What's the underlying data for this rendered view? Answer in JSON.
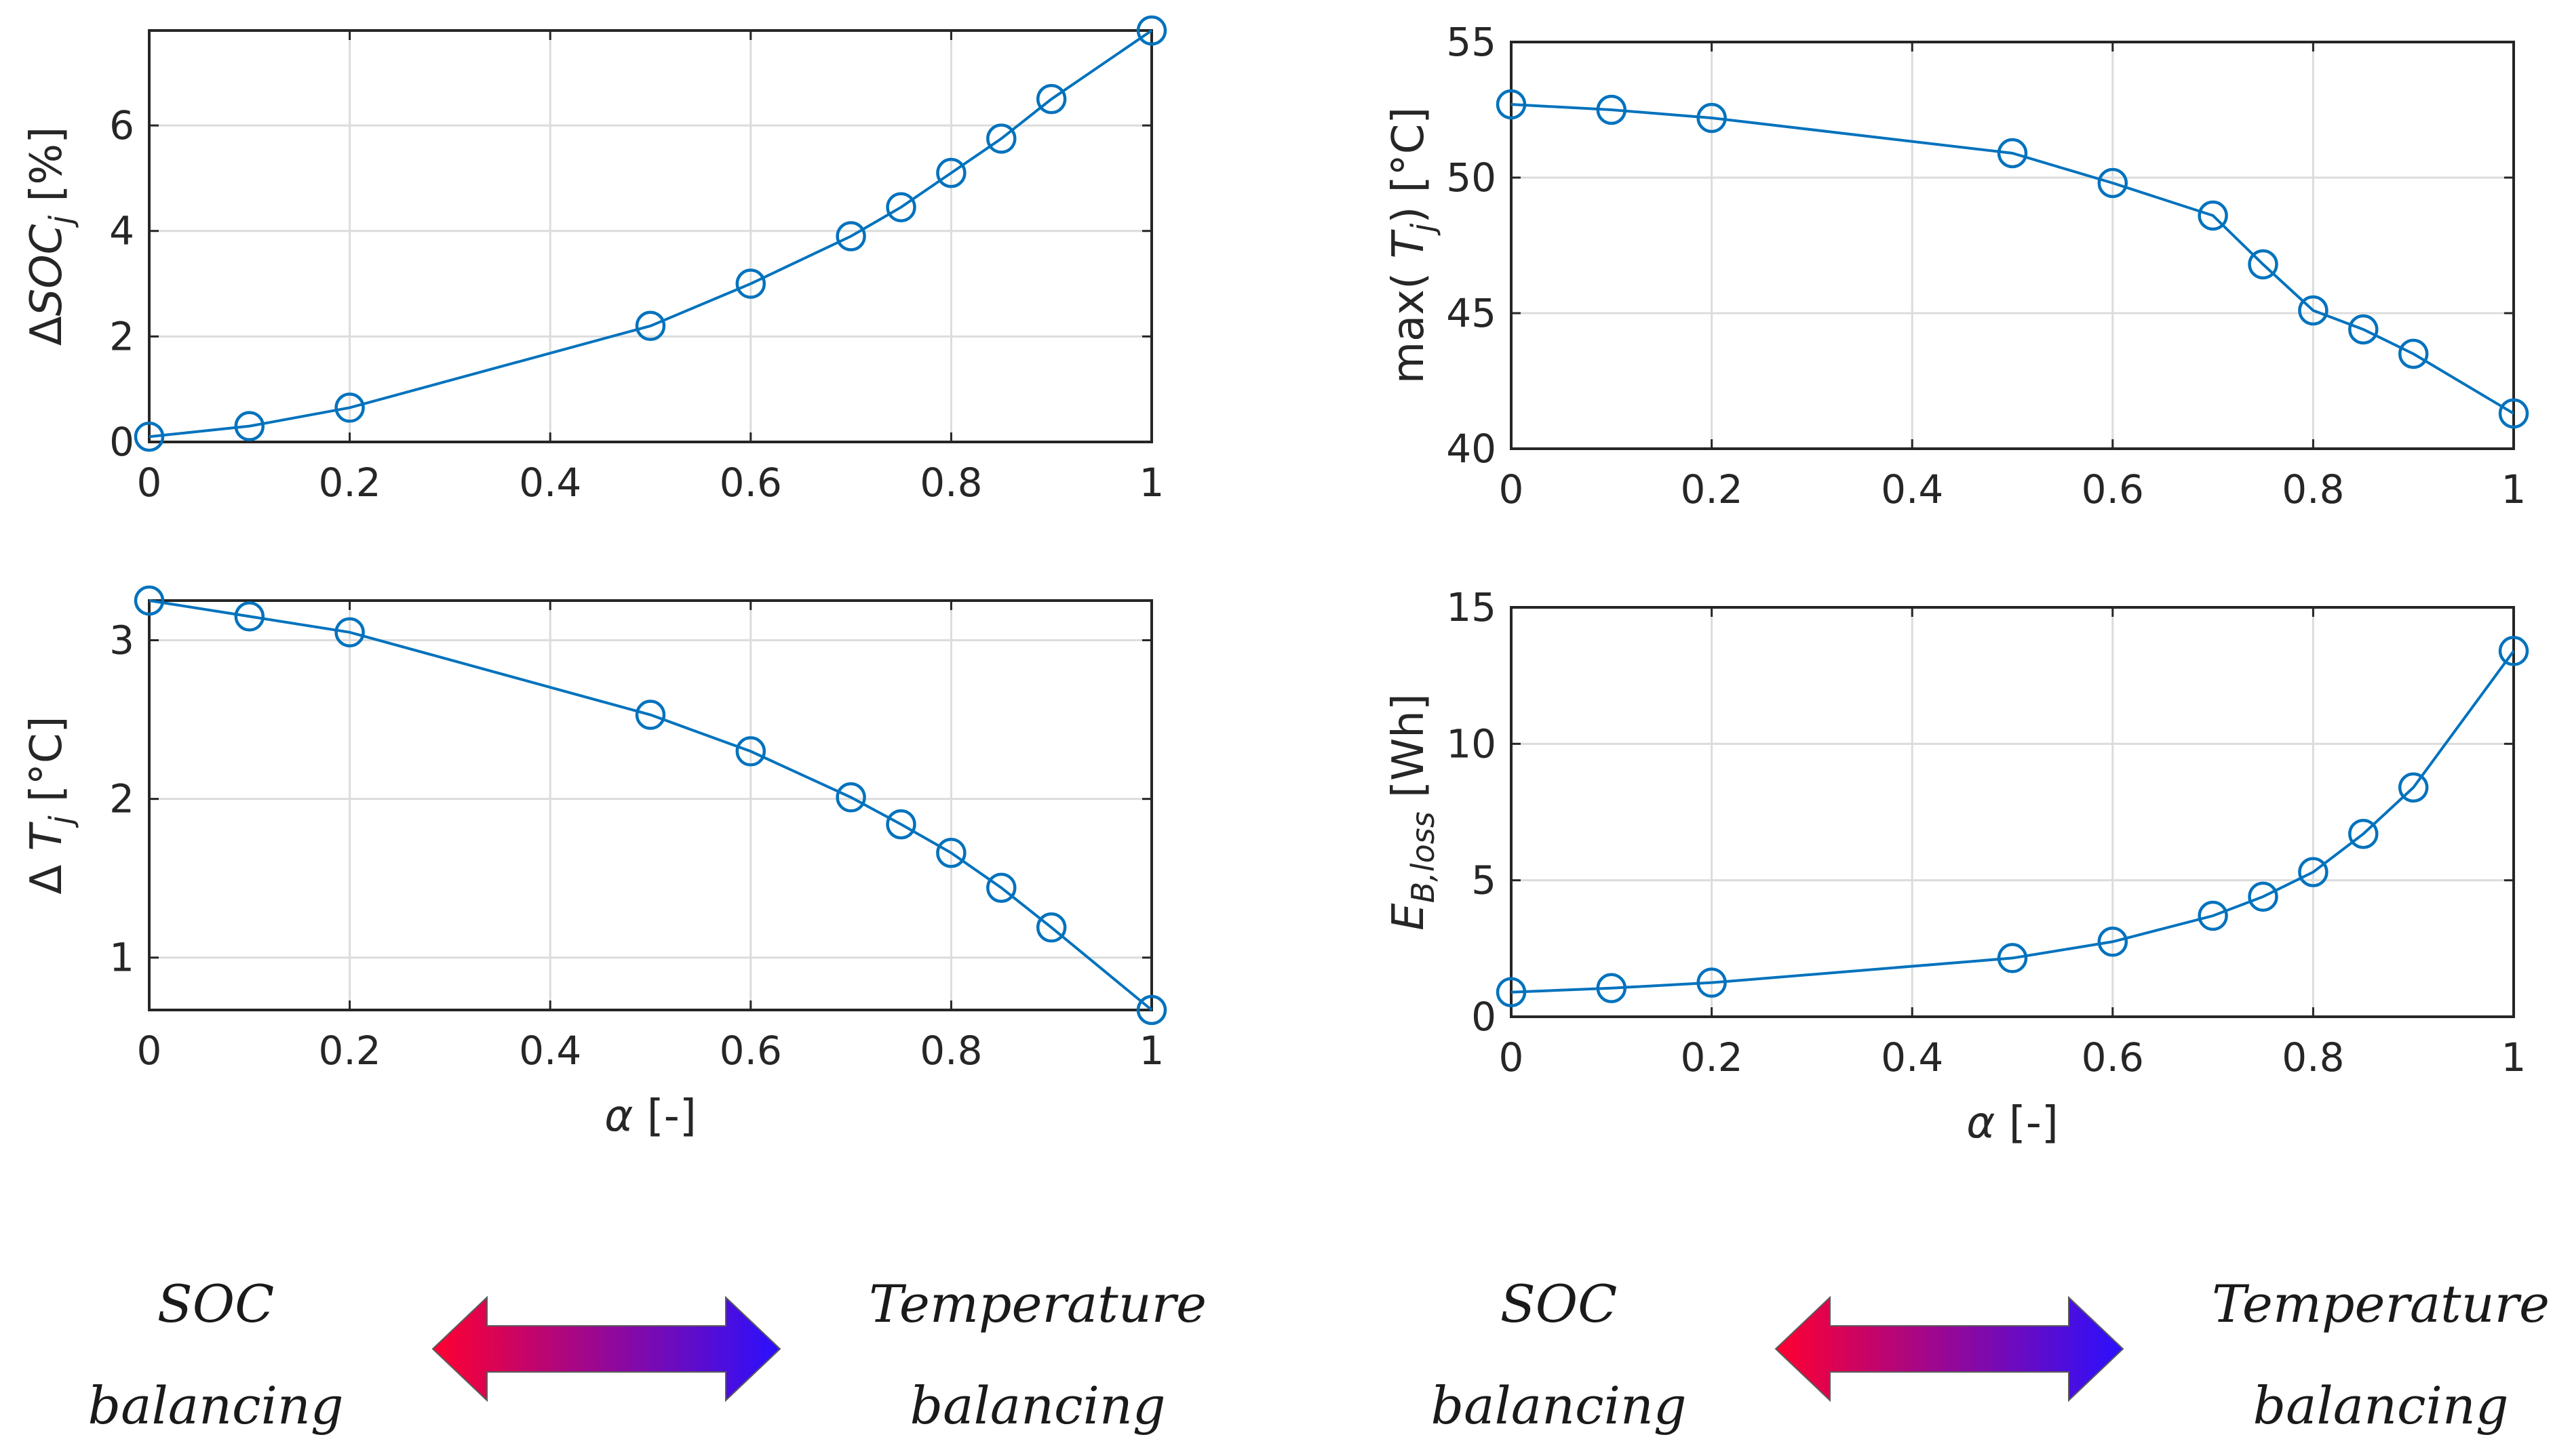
{
  "colors": {
    "series": "#0072BD",
    "arrow_left": "#ff0030",
    "arrow_right": "#2a10ff"
  },
  "chart_data": [
    {
      "type": "line",
      "id": "soc",
      "xlabel": "α [-]",
      "ylabel": {
        "prefix": "Δ",
        "main": "SOC",
        "sub": "j",
        "suffix": " [%]"
      },
      "x": [
        0,
        0.1,
        0.2,
        0.5,
        0.6,
        0.7,
        0.75,
        0.8,
        0.85,
        0.9,
        1
      ],
      "y": [
        0.1,
        0.3,
        0.65,
        2.2,
        3.0,
        3.9,
        4.45,
        5.1,
        5.75,
        6.5,
        7.8
      ],
      "xlim": [
        0,
        1
      ],
      "ylim": [
        0,
        7.8
      ],
      "xticks": [
        0,
        0.2,
        0.4,
        0.6,
        0.8,
        1
      ],
      "xticklabels": [
        "0",
        "0.2",
        "0.4",
        "0.6",
        "0.8",
        "1"
      ],
      "yticks": [
        0,
        2,
        4,
        6
      ],
      "yticklabels": [
        "0",
        "2",
        "4",
        "6"
      ],
      "grid": true
    },
    {
      "type": "line",
      "id": "maxT",
      "xlabel": "α [-]",
      "ylabel": {
        "prefix": "max( ",
        "main": "T",
        "sub": "j",
        "suffix": ") [°C]"
      },
      "x": [
        0,
        0.1,
        0.2,
        0.5,
        0.6,
        0.7,
        0.75,
        0.8,
        0.85,
        0.9,
        1
      ],
      "y": [
        52.7,
        52.5,
        52.2,
        50.9,
        49.8,
        48.6,
        46.8,
        45.1,
        44.4,
        43.5,
        41.3
      ],
      "xlim": [
        0,
        1
      ],
      "ylim": [
        40,
        55
      ],
      "xticks": [
        0,
        0.2,
        0.4,
        0.6,
        0.8,
        1
      ],
      "xticklabels": [
        "0",
        "0.2",
        "0.4",
        "0.6",
        "0.8",
        "1"
      ],
      "yticks": [
        40,
        45,
        50,
        55
      ],
      "yticklabels": [
        "40",
        "45",
        "50",
        "55"
      ],
      "grid": true
    },
    {
      "type": "line",
      "id": "dT",
      "xlabel": "α [-]",
      "ylabel": {
        "prefix": "Δ ",
        "main": "T",
        "sub": "j",
        "suffix": " [°C]"
      },
      "x": [
        0,
        0.1,
        0.2,
        0.5,
        0.6,
        0.7,
        0.75,
        0.8,
        0.85,
        0.9,
        1
      ],
      "y": [
        3.25,
        3.15,
        3.05,
        2.53,
        2.3,
        2.01,
        1.84,
        1.66,
        1.44,
        1.19,
        0.67
      ],
      "xlim": [
        0,
        1
      ],
      "ylim": [
        0.67,
        3.25
      ],
      "xticks": [
        0,
        0.2,
        0.4,
        0.6,
        0.8,
        1
      ],
      "xticklabels": [
        "0",
        "0.2",
        "0.4",
        "0.6",
        "0.8",
        "1"
      ],
      "yticks": [
        1,
        2,
        3
      ],
      "yticklabels": [
        "1",
        "2",
        "3"
      ],
      "grid": true
    },
    {
      "type": "line",
      "id": "Eloss",
      "xlabel": "α [-]",
      "ylabel": {
        "prefix": "",
        "main": "E",
        "sub": "B,loss",
        "suffix": " [Wh]"
      },
      "x": [
        0,
        0.1,
        0.2,
        0.5,
        0.6,
        0.7,
        0.75,
        0.8,
        0.85,
        0.9,
        1
      ],
      "y": [
        0.9,
        1.05,
        1.25,
        2.15,
        2.75,
        3.7,
        4.4,
        5.3,
        6.7,
        8.4,
        13.4
      ],
      "xlim": [
        0,
        1
      ],
      "ylim": [
        0,
        15
      ],
      "xticks": [
        0,
        0.2,
        0.4,
        0.6,
        0.8,
        1
      ],
      "xticklabels": [
        "0",
        "0.2",
        "0.4",
        "0.6",
        "0.8",
        "1"
      ],
      "yticks": [
        0,
        5,
        10,
        15
      ],
      "yticklabels": [
        "0",
        "5",
        "10",
        "15"
      ],
      "grid": true
    }
  ],
  "captions": {
    "left": {
      "soc_line1": "SOC",
      "soc_line2": "balancing",
      "temp_line1": "Temperature",
      "temp_line2": "balancing"
    },
    "right": {
      "soc_line1": "SOC",
      "soc_line2": "balancing",
      "temp_line1": "Temperature",
      "temp_line2": "balancing"
    }
  }
}
